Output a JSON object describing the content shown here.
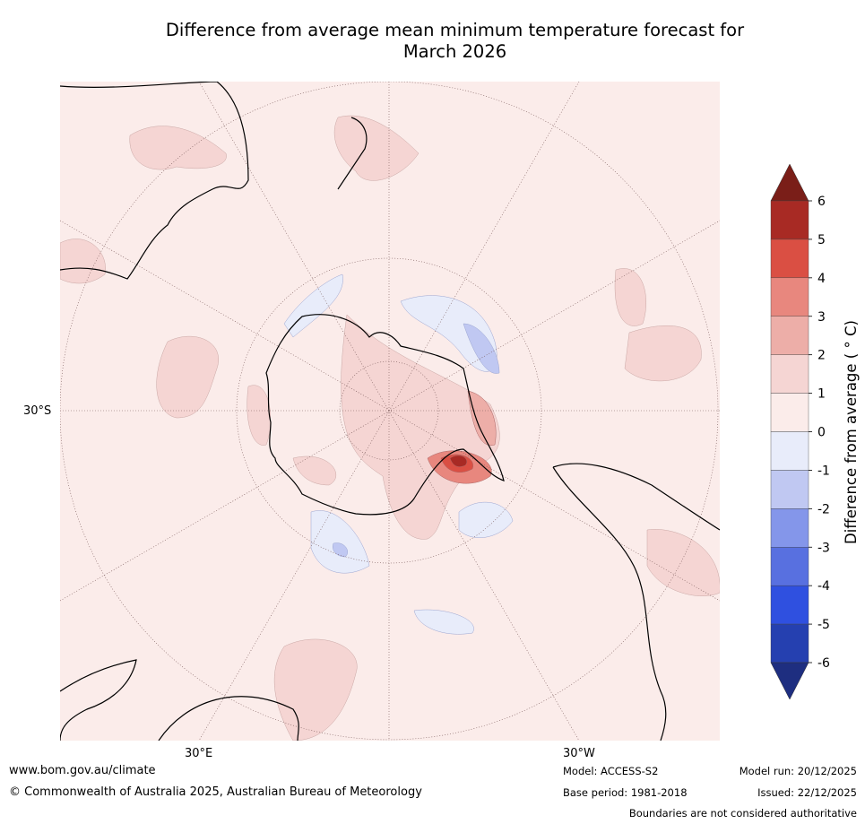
{
  "title": {
    "line1": "Difference from average mean minimum temperature forecast for",
    "line2": "March 2026"
  },
  "map": {
    "latitude_label": "30°S",
    "longitude_labels": [
      "30°E",
      "30°W"
    ],
    "colors": {
      "background": "#fbecea",
      "coast": "#000000",
      "grid": "#7a5a5a"
    }
  },
  "colorbar": {
    "label": "Difference from average ( ° C)",
    "ticks": [
      "6",
      "5",
      "4",
      "3",
      "2",
      "1",
      "0",
      "-1",
      "-2",
      "-3",
      "-4",
      "-5",
      "-6"
    ],
    "colors": [
      "#a82a24",
      "#da4f43",
      "#e8877e",
      "#edaea8",
      "#f5d5d3",
      "#fbecea",
      "#e8ecfa",
      "#c0c8f2",
      "#8496ea",
      "#5870e0",
      "#2f50e0",
      "#2540b0"
    ],
    "over_color": "#7a1e18",
    "under_color": "#1e2e80"
  },
  "footer": {
    "url": "www.bom.gov.au/climate",
    "copyright": "© Commonwealth of Australia 2025, Australian Bureau of Meteorology",
    "model": "Model: ACCESS-S2",
    "base_period": "Base period: 1981-2018",
    "model_run": "Model run: 20/12/2025",
    "issued": "Issued: 22/12/2025",
    "disclaimer": "Boundaries are not considered authoritative"
  }
}
